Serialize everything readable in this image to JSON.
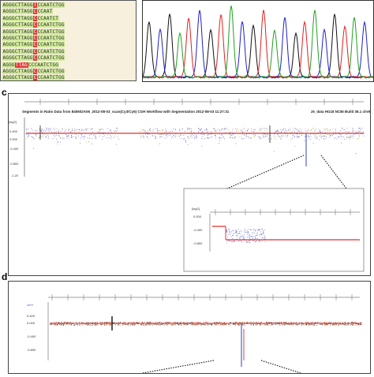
{
  "panels": {
    "c_label": "c",
    "d_label": "d"
  },
  "sequences": [
    [
      "AGGGCTTAGG",
      "T",
      "CCAATCTGG"
    ],
    [
      "AGGGCTTAGG",
      "C",
      "CCAAT"
    ],
    [
      "AGGGCTTAGG",
      "C",
      "CCAATCT"
    ],
    [
      "AGGGCTTAGG",
      "C",
      "CCAATCTGG"
    ],
    [
      "AGGGCTTAGG",
      "C",
      "CCAATCTGG"
    ],
    [
      "AGGGCTTAGG",
      "C",
      "CCAATCTGG"
    ],
    [
      "AGGGCTTAGG",
      "C",
      "CCAATCTGG"
    ],
    [
      "AGGGCTTAGG",
      "C",
      "CCAATCTGG"
    ],
    [
      "AGGGCTTAGG",
      "C",
      "CCAATCTGG"
    ],
    [
      "AGGG",
      "TTAG",
      "CCCAATCTGG"
    ],
    [
      "AGGGCTTAGG",
      "C",
      "CCAATCTGG"
    ],
    [
      "AGGGCTTAGG",
      "C",
      "CCAATCTGG"
    ]
  ],
  "cgh_main": {
    "title": "Segments in Ratio Data from 840602A06_2012-08-03_scan(Cy3/Cy5) CGH Workflow with Segmentation 2012-08-03 11:27:31",
    "build": "z5_data HG18 NCBI Build 36.1 chr9",
    "ylabel": "[log2]",
    "yticks": [
      "0.400",
      "0.000",
      "-0.400",
      "-0.800",
      "-1.20"
    ]
  },
  "cgh_zoom": {
    "ylabel": "[log2]",
    "yticks": [
      "0.000",
      "-0.400",
      "-0.800"
    ]
  },
  "cgh_d": {
    "chr_label": "chr9",
    "yticks": [
      "0.400",
      "0.000",
      "-0.400",
      "-0.800"
    ]
  },
  "colors": {
    "seq_highlight": "#e23a3a",
    "seq_base_bg": "#cfe89a",
    "trace_A": "#20a020",
    "trace_C": "#2020c8",
    "trace_G": "#111111",
    "trace_T": "#e02020",
    "segment_line": "#e03030",
    "probe_blue": "#5560c0",
    "probe_gold": "#d4a020"
  }
}
